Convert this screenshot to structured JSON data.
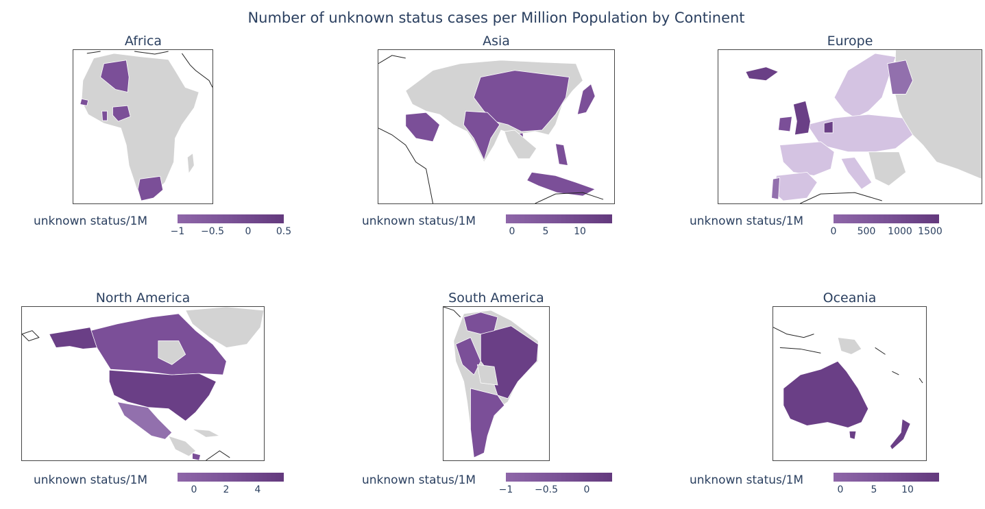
{
  "title": "Number of unknown status cases per Million Population by Continent",
  "colors": {
    "land": "#d3d3d3",
    "scale_low": "#8e66a8",
    "scale_high": "#63397d",
    "text": "#2a3f5f"
  },
  "panels": [
    {
      "name": "Africa",
      "colorbar_label": "unknown status/1M",
      "ticks": [
        "−1",
        "−0.5",
        "0",
        "0.5"
      ]
    },
    {
      "name": "Asia",
      "colorbar_label": "unknown status/1M",
      "ticks": [
        "0",
        "5",
        "10"
      ]
    },
    {
      "name": "Europe",
      "colorbar_label": "unknown status/1M",
      "ticks": [
        "0",
        "500",
        "1000",
        "1500"
      ]
    },
    {
      "name": "North America",
      "colorbar_label": "unknown status/1M",
      "ticks": [
        "0",
        "2",
        "4"
      ]
    },
    {
      "name": "South America",
      "colorbar_label": "unknown status/1M",
      "ticks": [
        "−1",
        "−0.5",
        "0"
      ]
    },
    {
      "name": "Oceania",
      "colorbar_label": "unknown status/1M",
      "ticks": [
        "0",
        "5",
        "10"
      ]
    }
  ]
}
